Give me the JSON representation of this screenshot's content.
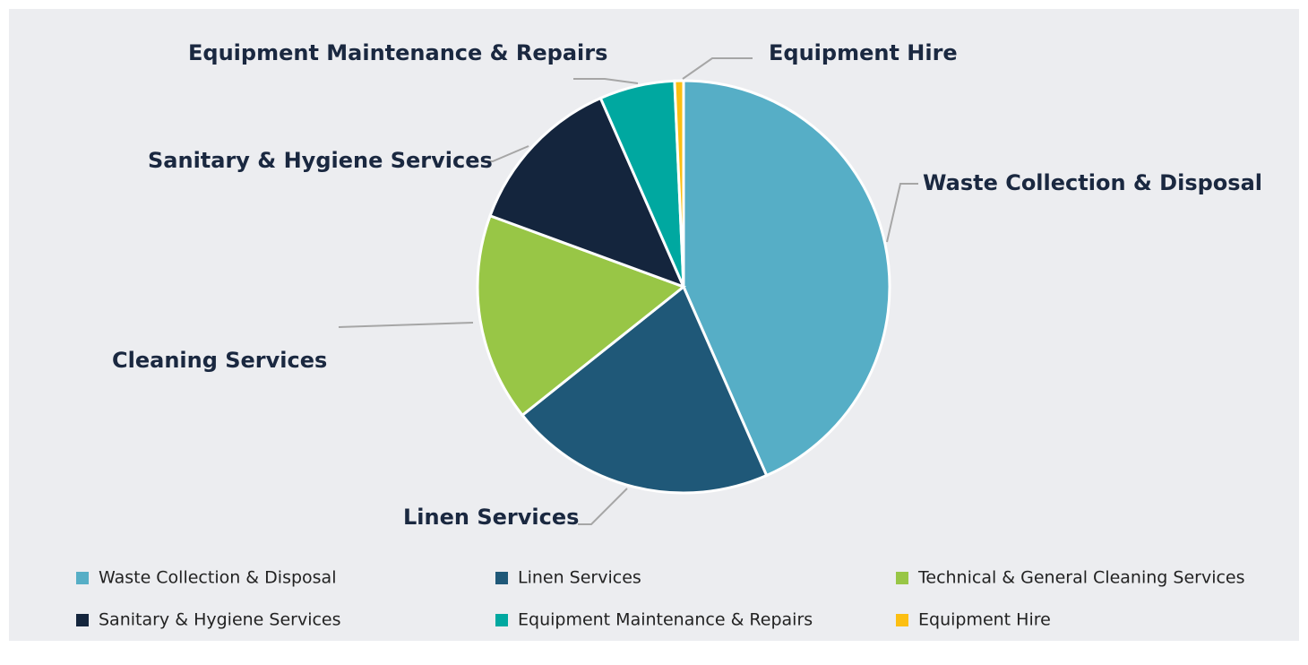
{
  "chart_data": {
    "type": "pie",
    "categories": [
      "Waste Collection & Disposal",
      "Linen Services",
      "Technical & General Cleaning Services",
      "Sanitary & Hygiene Services",
      "Equipment Maintenance & Repairs",
      "Equipment Hire"
    ],
    "labels": [
      "Waste Collection & Disposal",
      "Linen Services",
      "Cleaning Services",
      "Sanitary & Hygiene Services",
      "Equipment Maintenance & Repairs",
      "Equipment Hire"
    ],
    "values": [
      43.4,
      20.9,
      16.3,
      12.8,
      5.9,
      0.7
    ],
    "colors": [
      "#56aec6",
      "#1f5878",
      "#98c646",
      "#14253d",
      "#00a8a0",
      "#fcbf12"
    ]
  }
}
